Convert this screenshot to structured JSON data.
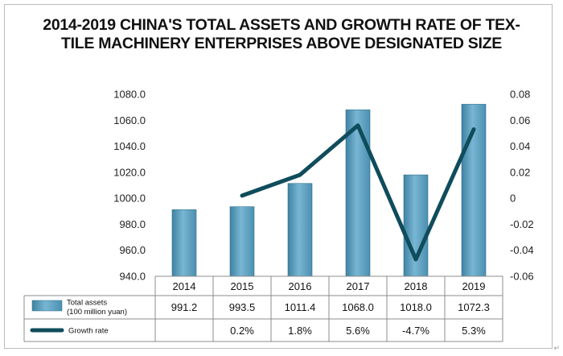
{
  "chart_data": {
    "type": "bar+line",
    "title_line1": "2014-2019 CHINA'S TOTAL ASSETS AND GROWTH RATE OF TEX-",
    "title_line2": "TILE MACHINERY ENTERPRISES ABOVE DESIGNATED SIZE",
    "categories": [
      "2014",
      "2015",
      "2016",
      "2017",
      "2018",
      "2019"
    ],
    "series": [
      {
        "name": "Total assets",
        "legend_line1": "Total assets",
        "legend_line2": "(100 million yuan)",
        "type": "bar",
        "axis": "left",
        "values": [
          991.2,
          993.5,
          1011.4,
          1068.0,
          1018.0,
          1072.3
        ],
        "labels": [
          "991.2",
          "993.5",
          "1011.4",
          "1068.0",
          "1018.0",
          "1072.3"
        ],
        "color": "#5a9fc0"
      },
      {
        "name": "Growth rate",
        "type": "line",
        "axis": "right",
        "values": [
          null,
          0.002,
          0.018,
          0.056,
          -0.047,
          0.053
        ],
        "labels": [
          "",
          "0.2%",
          "1.8%",
          "5.6%",
          "-4.7%",
          "5.3%"
        ],
        "color": "#0f4c5c"
      }
    ],
    "y_left": {
      "lim": [
        940,
        1080
      ],
      "ticks": [
        940,
        960,
        980,
        1000,
        1020,
        1040,
        1060,
        1080
      ],
      "tick_labels": [
        "940.0",
        "960.0",
        "980.0",
        "1000.0",
        "1020.0",
        "1040.0",
        "1060.0",
        "1080.0"
      ]
    },
    "y_right": {
      "lim": [
        -0.06,
        0.08
      ],
      "ticks": [
        -0.06,
        -0.04,
        -0.02,
        0,
        0.02,
        0.04,
        0.06,
        0.08
      ],
      "tick_labels": [
        "-0.06",
        "-0.04",
        "-0.02",
        "0",
        "0.02",
        "0.04",
        "0.06",
        "0.08"
      ]
    },
    "grid": false,
    "data_table": true
  },
  "corner_mark": "↵"
}
